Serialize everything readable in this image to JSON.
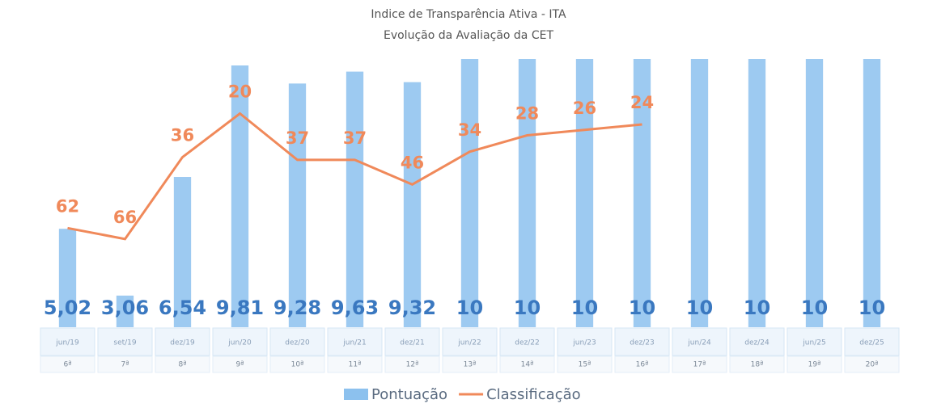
{
  "chart_data": {
    "type": "bar_line",
    "title": "Indice de Transparência Ativa - ITA",
    "subtitle": "Evolução da Avaliação da CET",
    "categories": [
      "jun/19",
      "set/19",
      "dez/19",
      "jun/20",
      "dez/20",
      "jun/21",
      "dez/21",
      "jun/22",
      "dez/22",
      "jun/23",
      "dez/23",
      "jun/24",
      "dez/24",
      "jun/25",
      "dez/25"
    ],
    "subcategories": [
      "6ª",
      "7ª",
      "8ª",
      "9ª",
      "10ª",
      "11ª",
      "12ª",
      "13ª",
      "14ª",
      "15ª",
      "16ª",
      "17ª",
      "18ª",
      "19ª",
      "20ª"
    ],
    "series": [
      {
        "name": "Pontuação",
        "type": "bar",
        "color": "#8cc1ee",
        "values": [
          5.02,
          3.06,
          6.54,
          9.81,
          9.28,
          9.63,
          9.32,
          10,
          10,
          10,
          10,
          10,
          10,
          10,
          10
        ],
        "value_labels": [
          "5,02",
          "3,06",
          "6,54",
          "9,81",
          "9,28",
          "9,63",
          "9,32",
          "10",
          "10",
          "10",
          "10",
          "10",
          "10",
          "10",
          "10"
        ]
      },
      {
        "name": "Classificação",
        "type": "line",
        "axis": "y2",
        "color": "#f0895a",
        "values": [
          62,
          66,
          36,
          20,
          37,
          37,
          46,
          34,
          28,
          26,
          24,
          null,
          null,
          null,
          null
        ]
      }
    ],
    "ylim": [
      0,
      10
    ],
    "y2lim": [
      0,
      125
    ],
    "y2_inverted": true,
    "legend": "bottom"
  }
}
